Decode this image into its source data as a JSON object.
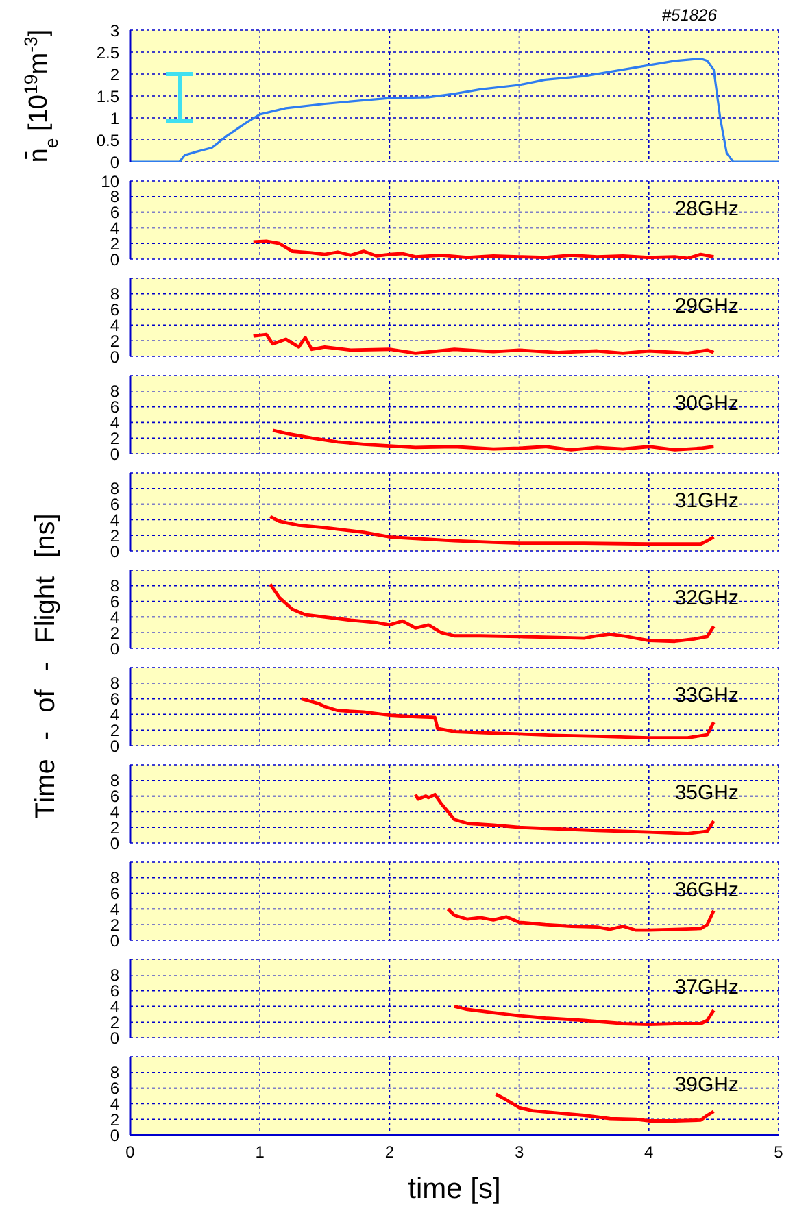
{
  "chart_data": [
    {
      "type": "line",
      "ylabel": "n̄$_{e}$ [10$^{19}$m$^{-3}$]",
      "annotations": [
        "#51826"
      ],
      "xlim": [
        0,
        5
      ],
      "xticks": [
        0,
        1,
        2,
        3,
        4,
        5
      ],
      "ylim": [
        0,
        3
      ],
      "yticks": [
        0,
        0.5,
        1,
        1.5,
        2,
        2.5,
        3
      ],
      "grid": true,
      "tick_labels": "y",
      "color": "#2e7cf0",
      "x": [
        0,
        0.38,
        0.42,
        0.5,
        0.63,
        0.75,
        0.9,
        1.0,
        1.2,
        1.5,
        1.8,
        2.0,
        2.3,
        2.5,
        2.7,
        3.0,
        3.2,
        3.5,
        3.8,
        4.0,
        4.2,
        4.4,
        4.45,
        4.5,
        4.55,
        4.6,
        4.65,
        5
      ],
      "values": [
        0,
        0,
        0.15,
        0.22,
        0.32,
        0.6,
        0.9,
        1.08,
        1.22,
        1.32,
        1.4,
        1.45,
        1.47,
        1.55,
        1.65,
        1.75,
        1.87,
        1.95,
        2.1,
        2.2,
        2.3,
        2.35,
        2.3,
        2.1,
        1.0,
        0.2,
        0,
        0
      ]
    },
    {
      "type": "line",
      "annotations": [
        "28GHz"
      ],
      "xlim": [
        0,
        5
      ],
      "xticks": [
        0,
        1,
        2,
        3,
        4,
        5
      ],
      "ylim": [
        0,
        10
      ],
      "yticks": [
        0,
        2,
        4,
        6,
        8,
        10
      ],
      "grid": true,
      "tick_labels": "y",
      "color": "#ff0000",
      "x": [
        0.95,
        1.05,
        1.15,
        1.2,
        1.25,
        1.4,
        1.5,
        1.6,
        1.7,
        1.8,
        1.9,
        2.0,
        2.1,
        2.2,
        2.4,
        2.6,
        2.8,
        3.0,
        3.2,
        3.4,
        3.6,
        3.8,
        4.0,
        4.2,
        4.3,
        4.4,
        4.5
      ],
      "values": [
        2.2,
        2.3,
        2.0,
        1.5,
        1.0,
        0.8,
        0.6,
        0.9,
        0.5,
        1.0,
        0.4,
        0.6,
        0.7,
        0.3,
        0.5,
        0.2,
        0.4,
        0.3,
        0.2,
        0.5,
        0.3,
        0.4,
        0.2,
        0.3,
        0.1,
        0.6,
        0.3
      ]
    },
    {
      "type": "line",
      "annotations": [
        "29GHz"
      ],
      "xlim": [
        0,
        5
      ],
      "xticks": [
        0,
        1,
        2,
        3,
        4,
        5
      ],
      "ylim": [
        0,
        10
      ],
      "yticks": [
        0,
        2,
        4,
        6,
        8
      ],
      "grid": true,
      "tick_labels": "y",
      "color": "#ff0000",
      "x": [
        0.95,
        1.05,
        1.1,
        1.2,
        1.3,
        1.35,
        1.4,
        1.5,
        1.7,
        2.0,
        2.2,
        2.5,
        2.8,
        3.0,
        3.3,
        3.6,
        3.8,
        4.0,
        4.3,
        4.45,
        4.5
      ],
      "values": [
        2.6,
        2.8,
        1.6,
        2.2,
        1.2,
        2.4,
        0.9,
        1.2,
        0.8,
        0.9,
        0.4,
        0.9,
        0.6,
        0.8,
        0.5,
        0.7,
        0.4,
        0.7,
        0.4,
        0.8,
        0.5
      ]
    },
    {
      "type": "line",
      "annotations": [
        "30GHz"
      ],
      "xlim": [
        0,
        5
      ],
      "xticks": [
        0,
        1,
        2,
        3,
        4,
        5
      ],
      "ylim": [
        0,
        10
      ],
      "yticks": [
        0,
        2,
        4,
        6,
        8
      ],
      "grid": true,
      "tick_labels": "y",
      "color": "#ff0000",
      "x": [
        1.1,
        1.2,
        1.4,
        1.6,
        1.8,
        2.0,
        2.2,
        2.5,
        2.8,
        3.0,
        3.2,
        3.4,
        3.6,
        3.8,
        4.0,
        4.2,
        4.4,
        4.5
      ],
      "values": [
        3.0,
        2.6,
        2.0,
        1.5,
        1.2,
        1.0,
        0.8,
        0.9,
        0.6,
        0.7,
        0.9,
        0.5,
        0.8,
        0.6,
        0.9,
        0.5,
        0.7,
        0.9
      ]
    },
    {
      "type": "line",
      "annotations": [
        "31GHz"
      ],
      "xlim": [
        0,
        5
      ],
      "xticks": [
        0,
        1,
        2,
        3,
        4,
        5
      ],
      "ylim": [
        0,
        10
      ],
      "yticks": [
        0,
        2,
        4,
        6,
        8
      ],
      "grid": true,
      "tick_labels": "y",
      "color": "#ff0000",
      "x": [
        1.08,
        1.15,
        1.3,
        1.5,
        1.6,
        1.8,
        2.0,
        2.2,
        2.5,
        2.8,
        3.0,
        3.5,
        4.0,
        4.4,
        4.45,
        4.5
      ],
      "values": [
        4.4,
        3.8,
        3.3,
        3.0,
        2.8,
        2.4,
        1.8,
        1.6,
        1.3,
        1.1,
        1.0,
        1.0,
        0.9,
        0.9,
        1.3,
        1.8
      ]
    },
    {
      "type": "line",
      "ylabel": "Time - of - Flight [ns]",
      "annotations": [
        "32GHz"
      ],
      "xlim": [
        0,
        5
      ],
      "xticks": [
        0,
        1,
        2,
        3,
        4,
        5
      ],
      "ylim": [
        0,
        10
      ],
      "yticks": [
        0,
        2,
        4,
        6,
        8
      ],
      "grid": true,
      "tick_labels": "y",
      "color": "#ff0000",
      "x": [
        1.08,
        1.15,
        1.25,
        1.35,
        1.5,
        1.7,
        1.9,
        2.0,
        2.1,
        2.2,
        2.3,
        2.4,
        2.5,
        2.7,
        3.0,
        3.3,
        3.5,
        3.6,
        3.7,
        3.8,
        4.0,
        4.2,
        4.35,
        4.45,
        4.5
      ],
      "values": [
        8.2,
        6.5,
        5.0,
        4.3,
        4.0,
        3.6,
        3.3,
        3.0,
        3.5,
        2.6,
        3.0,
        2.0,
        1.6,
        1.6,
        1.5,
        1.4,
        1.3,
        1.6,
        1.8,
        1.6,
        1.0,
        0.9,
        1.2,
        1.5,
        2.8
      ]
    },
    {
      "type": "line",
      "annotations": [
        "33GHz"
      ],
      "xlim": [
        0,
        5
      ],
      "xticks": [
        0,
        1,
        2,
        3,
        4,
        5
      ],
      "ylim": [
        0,
        10
      ],
      "yticks": [
        0,
        2,
        4,
        6,
        8
      ],
      "grid": true,
      "tick_labels": "y",
      "color": "#ff0000",
      "x": [
        1.32,
        1.45,
        1.5,
        1.6,
        1.8,
        2.0,
        2.2,
        2.35,
        2.37,
        2.5,
        2.8,
        3.0,
        3.3,
        3.6,
        4.0,
        4.3,
        4.45,
        4.5
      ],
      "values": [
        6.0,
        5.4,
        5.0,
        4.5,
        4.3,
        3.9,
        3.7,
        3.6,
        2.2,
        1.8,
        1.6,
        1.5,
        1.3,
        1.2,
        1.0,
        1.0,
        1.4,
        3.0
      ]
    },
    {
      "type": "line",
      "annotations": [
        "35GHz"
      ],
      "xlim": [
        0,
        5
      ],
      "xticks": [
        0,
        1,
        2,
        3,
        4,
        5
      ],
      "ylim": [
        0,
        10
      ],
      "yticks": [
        0,
        2,
        4,
        6,
        8
      ],
      "grid": true,
      "tick_labels": "y",
      "color": "#ff0000",
      "x": [
        2.2,
        2.22,
        2.28,
        2.3,
        2.35,
        2.4,
        2.45,
        2.5,
        2.6,
        2.8,
        3.0,
        3.3,
        3.6,
        4.0,
        4.3,
        4.45,
        4.5
      ],
      "values": [
        6.2,
        5.6,
        6.0,
        5.8,
        6.2,
        5.0,
        4.0,
        3.0,
        2.5,
        2.3,
        2.0,
        1.8,
        1.6,
        1.4,
        1.2,
        1.5,
        2.8
      ]
    },
    {
      "type": "line",
      "annotations": [
        "36GHz"
      ],
      "xlim": [
        0,
        5
      ],
      "xticks": [
        0,
        1,
        2,
        3,
        4,
        5
      ],
      "ylim": [
        0,
        10
      ],
      "yticks": [
        0,
        2,
        4,
        6,
        8
      ],
      "grid": true,
      "tick_labels": "y",
      "color": "#ff0000",
      "x": [
        2.45,
        2.5,
        2.6,
        2.7,
        2.8,
        2.9,
        3.0,
        3.2,
        3.4,
        3.6,
        3.7,
        3.8,
        3.9,
        4.0,
        4.2,
        4.4,
        4.45,
        4.5
      ],
      "values": [
        4.0,
        3.2,
        2.7,
        2.9,
        2.6,
        3.0,
        2.3,
        2.0,
        1.8,
        1.7,
        1.4,
        1.8,
        1.3,
        1.3,
        1.4,
        1.5,
        2.0,
        3.8
      ]
    },
    {
      "type": "line",
      "annotations": [
        "37GHz"
      ],
      "xlim": [
        0,
        5
      ],
      "xticks": [
        0,
        1,
        2,
        3,
        4,
        5
      ],
      "ylim": [
        0,
        10
      ],
      "yticks": [
        0,
        2,
        4,
        6,
        8
      ],
      "grid": true,
      "tick_labels": "y",
      "color": "#ff0000",
      "x": [
        2.5,
        2.6,
        2.8,
        3.0,
        3.2,
        3.5,
        3.8,
        4.0,
        4.2,
        4.4,
        4.45,
        4.5
      ],
      "values": [
        4.0,
        3.6,
        3.2,
        2.8,
        2.5,
        2.2,
        1.8,
        1.7,
        1.8,
        1.8,
        2.2,
        3.5
      ]
    },
    {
      "type": "line",
      "annotations": [
        "39GHz"
      ],
      "xlabel": "time [s]",
      "xlim": [
        0,
        5
      ],
      "xticks": [
        0,
        1,
        2,
        3,
        4,
        5
      ],
      "ylim": [
        0,
        10
      ],
      "yticks": [
        0,
        2,
        4,
        6,
        8
      ],
      "grid": true,
      "color": "#ff0000",
      "x": [
        2.82,
        2.9,
        3.0,
        3.1,
        3.3,
        3.5,
        3.7,
        3.9,
        4.0,
        4.2,
        4.4,
        4.45,
        4.5
      ],
      "values": [
        5.2,
        4.5,
        3.5,
        3.1,
        2.8,
        2.5,
        2.1,
        2.0,
        1.8,
        1.8,
        1.9,
        2.5,
        3.0
      ]
    }
  ]
}
